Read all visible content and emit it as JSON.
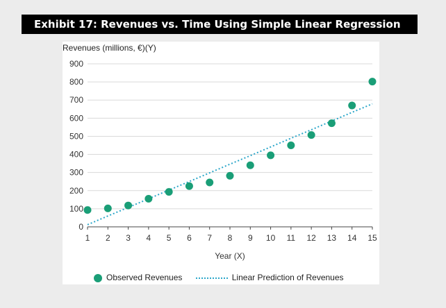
{
  "header": {
    "title": "Exhibit 17: Revenues vs. Time Using Simple Linear Regression"
  },
  "colors": {
    "title_bar": "#000000",
    "observed": "#1a9e77",
    "prediction": "#2aa6c9",
    "background": "#ececec"
  },
  "chart_data": {
    "type": "scatter",
    "title": "",
    "ylabel": "Revenues (millions, €)(Y)",
    "xlabel": "Year (X)",
    "x": [
      1,
      2,
      3,
      4,
      5,
      6,
      7,
      8,
      9,
      10,
      11,
      12,
      13,
      14,
      15
    ],
    "xlim": [
      1,
      15
    ],
    "ylim": [
      0,
      900
    ],
    "yticks": [
      0,
      100,
      200,
      300,
      400,
      500,
      600,
      700,
      800,
      900
    ],
    "xticks": [
      1,
      2,
      3,
      4,
      5,
      6,
      7,
      8,
      9,
      10,
      11,
      12,
      13,
      14,
      15
    ],
    "grid": "horizontal",
    "legend_position": "bottom",
    "series": [
      {
        "name": "Observed Revenues",
        "kind": "scatter",
        "values": [
          93,
          102,
          118,
          155,
          193,
          225,
          245,
          282,
          340,
          395,
          450,
          507,
          572,
          670,
          802
        ]
      },
      {
        "name": "Linear Prediction of Revenues",
        "kind": "line",
        "style": "dotted",
        "values": [
          12,
          60,
          107,
          155,
          203,
          250,
          298,
          346,
          393,
          441,
          489,
          536,
          584,
          632,
          679
        ]
      }
    ]
  }
}
